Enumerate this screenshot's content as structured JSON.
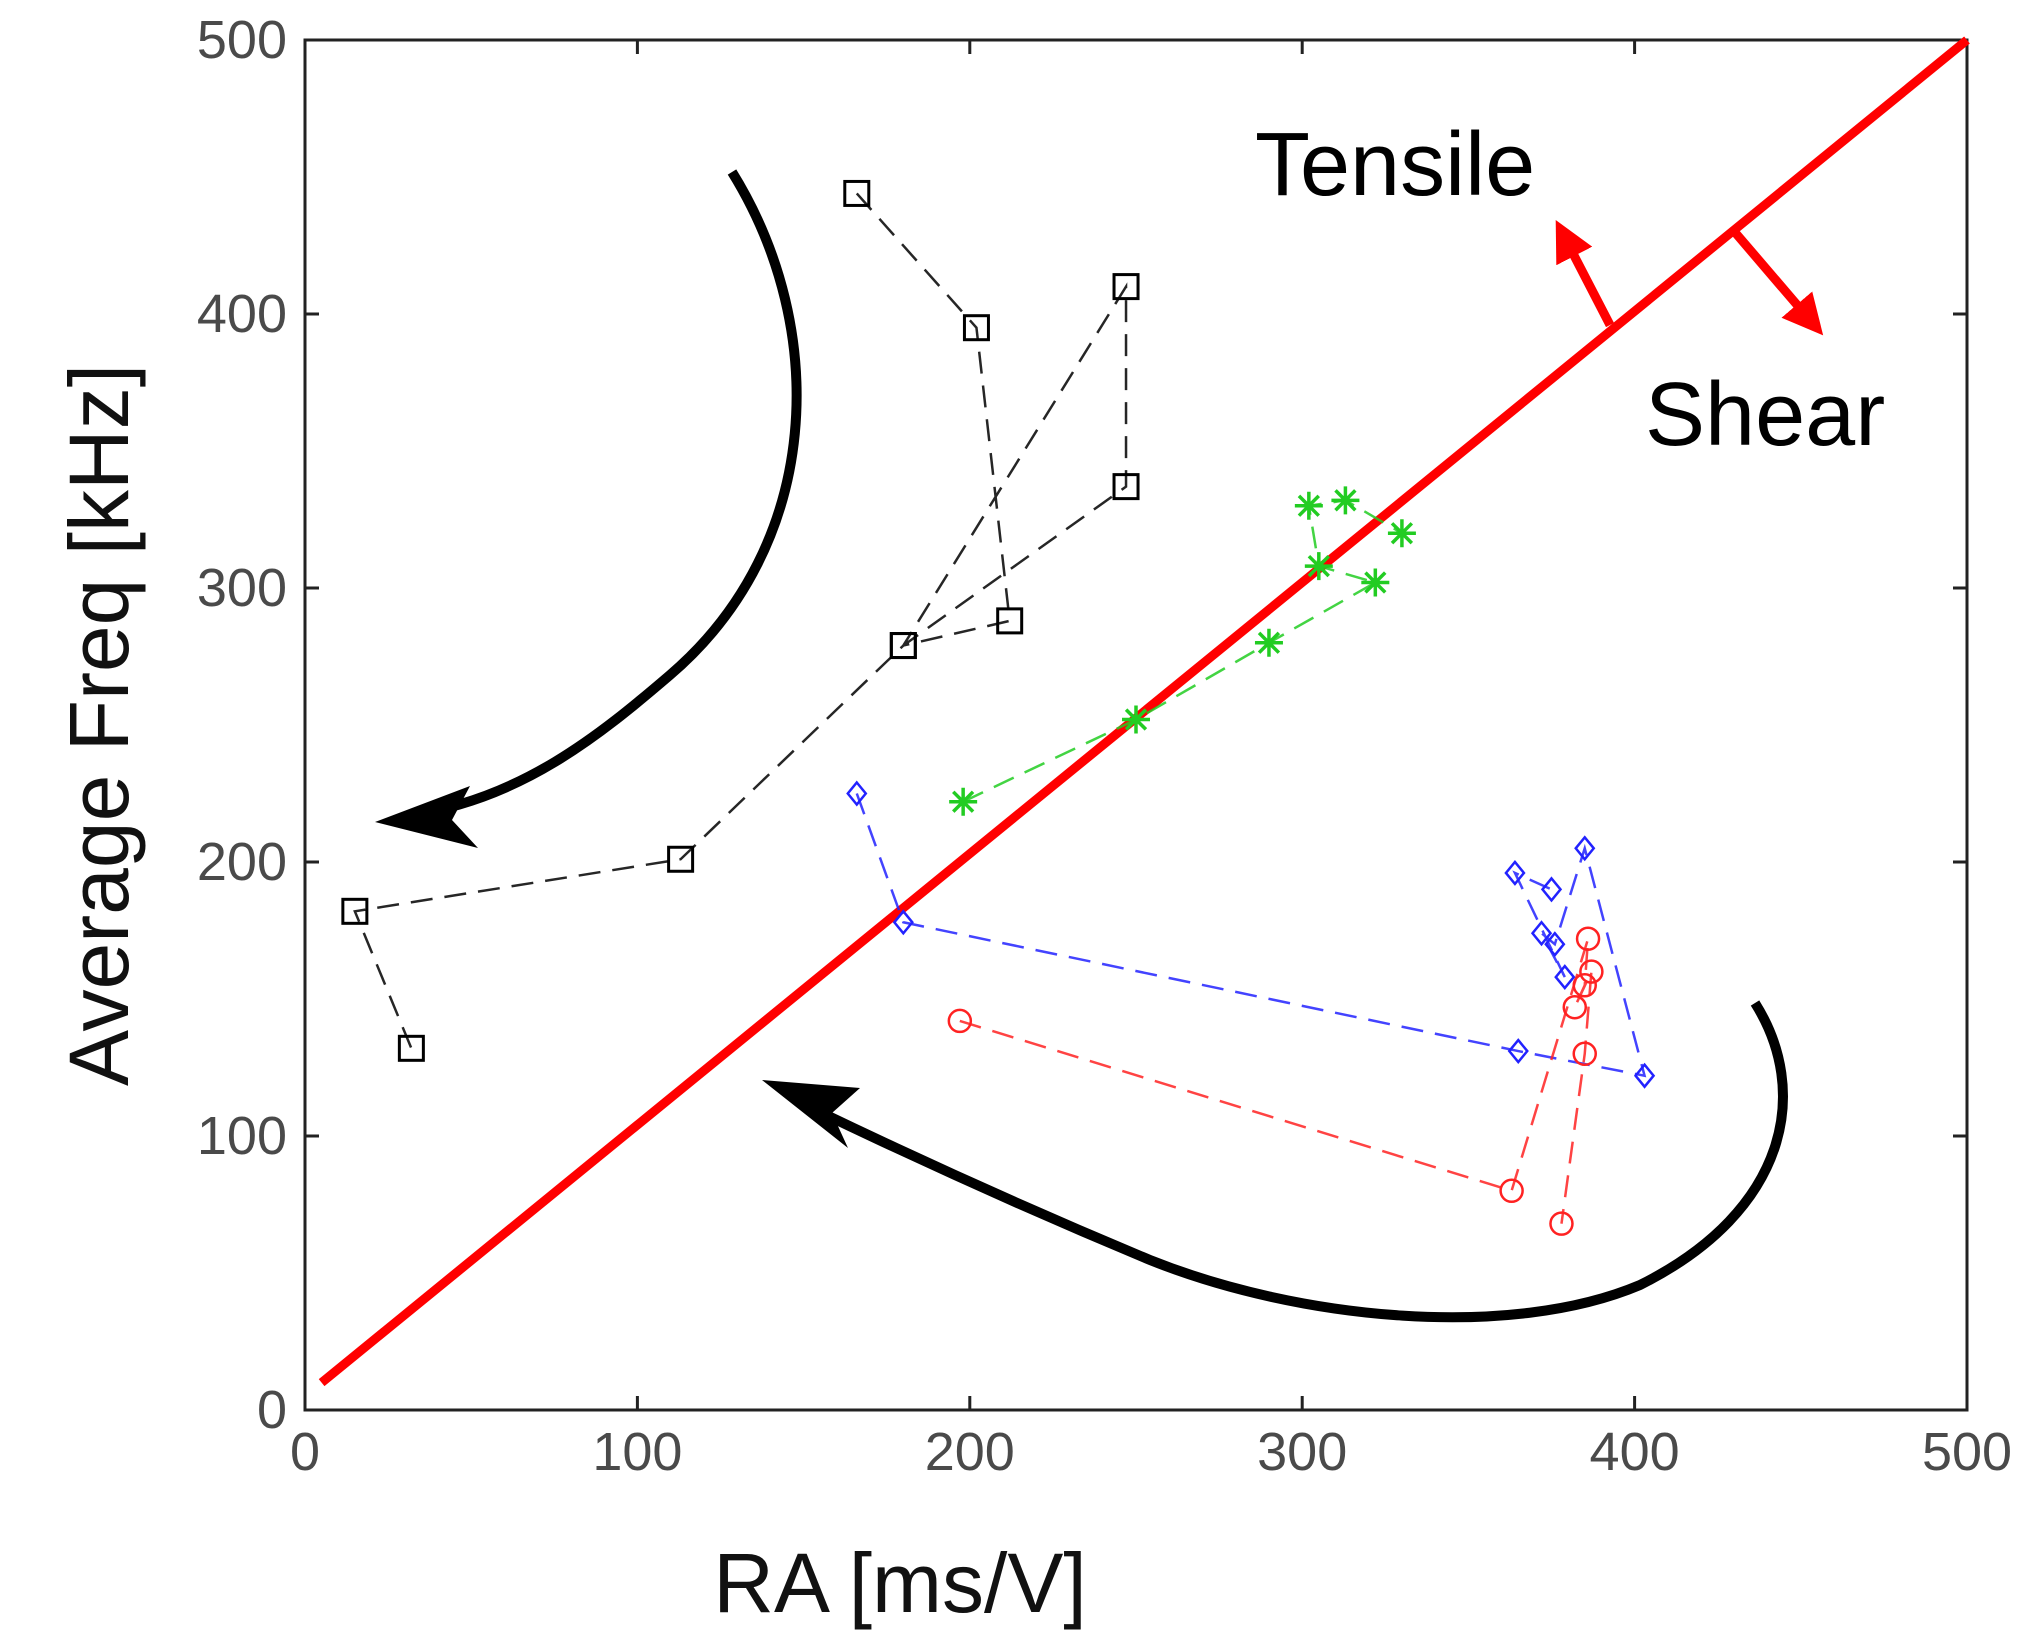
{
  "chart_data": {
    "type": "scatter",
    "title": "",
    "xlabel": "RA [ms/V]",
    "ylabel": "Average Freq [kHz]",
    "xlim": [
      0,
      500
    ],
    "ylim": [
      0,
      500
    ],
    "xticks": [
      0,
      100,
      200,
      300,
      400,
      500
    ],
    "yticks": [
      0,
      100,
      200,
      300,
      400,
      500
    ],
    "grid": false,
    "series": [
      {
        "name": "black-squares",
        "color": "#000000",
        "marker": "square",
        "line": "dashed",
        "x": [
          166,
          202,
          212,
          180,
          247,
          247,
          180,
          113,
          15,
          32
        ],
        "y": [
          444,
          395,
          288,
          279,
          410,
          337,
          279,
          201,
          182,
          132
        ]
      },
      {
        "name": "green-stars",
        "color": "#22cc22",
        "marker": "star",
        "line": "dashed",
        "x": [
          198,
          250,
          290,
          322,
          305,
          302,
          313,
          330
        ],
        "y": [
          222,
          252,
          280,
          302,
          308,
          330,
          332,
          320
        ]
      },
      {
        "name": "blue-diamonds",
        "color": "#2222ff",
        "marker": "diamond",
        "line": "dashed",
        "x": [
          166,
          180,
          365,
          403,
          385,
          376,
          372,
          379,
          364,
          375
        ],
        "y": [
          225,
          178,
          131,
          122,
          205,
          170,
          174,
          158,
          196,
          190
        ]
      },
      {
        "name": "red-circles",
        "color": "#ff2222",
        "marker": "circle",
        "line": "dashed",
        "x": [
          197,
          363,
          386,
          385,
          382,
          387,
          385,
          378
        ],
        "y": [
          142,
          80,
          172,
          155,
          147,
          160,
          130,
          68
        ]
      }
    ],
    "reference_line": {
      "name": "tensile-shear-boundary",
      "color": "#ff0000",
      "x": [
        5,
        500
      ],
      "y": [
        10,
        500
      ]
    },
    "annotations": {
      "tensile": "Tensile",
      "shear": "Shear"
    }
  }
}
